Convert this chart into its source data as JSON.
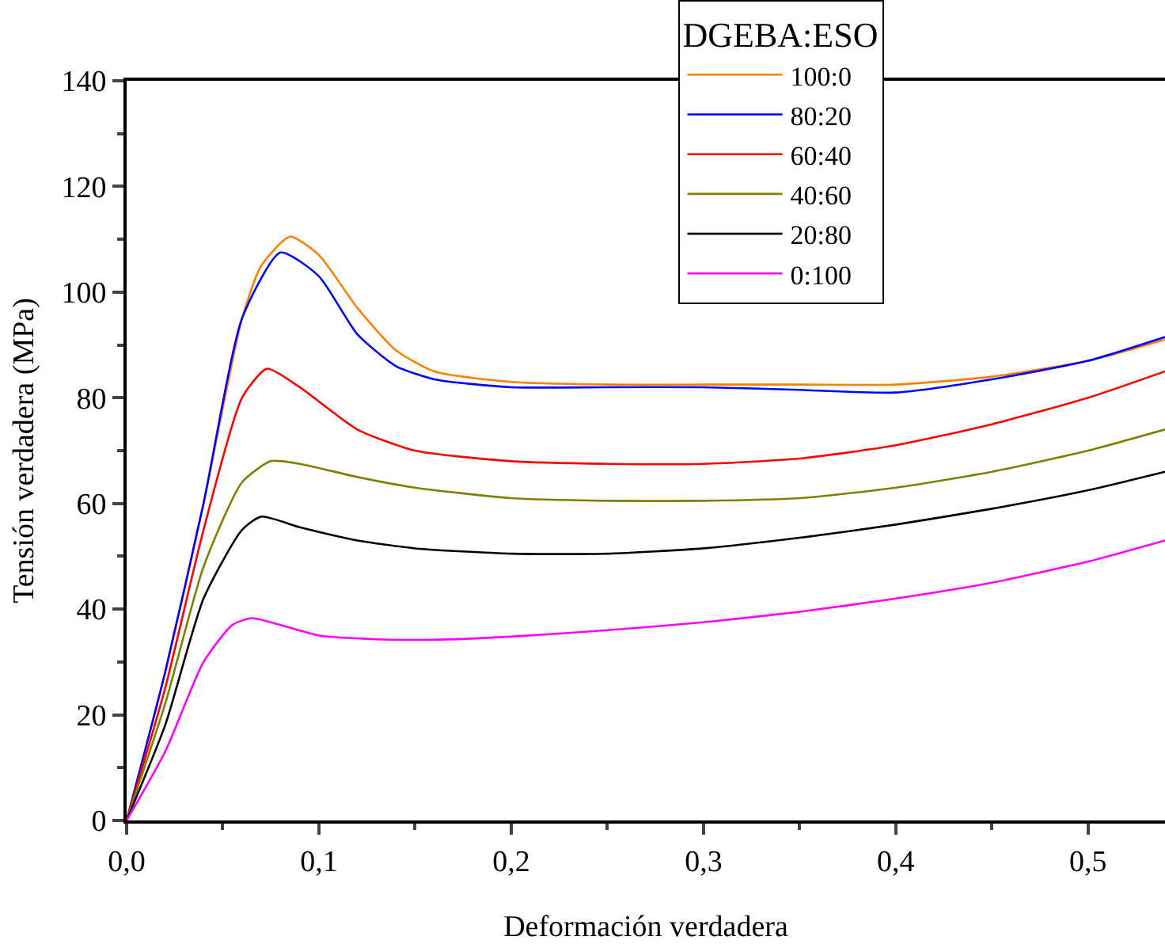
{
  "chart_data": {
    "type": "line",
    "xlabel": "Deformación verdadera",
    "ylabel": "Tensión verdadera (MPa)",
    "legend_title": "DGEBA:ESO",
    "legend": "top",
    "marker": "none",
    "line_style": "solid",
    "xlim": [
      0,
      0.54
    ],
    "xticks": [
      {
        "value": 0,
        "label": "0,0"
      },
      {
        "value": 0.1,
        "label": "0,1"
      },
      {
        "value": 0.2,
        "label": "0,2"
      },
      {
        "value": 0.3,
        "label": "0,3"
      },
      {
        "value": 0.4,
        "label": "0,4"
      },
      {
        "value": 0.5,
        "label": "0,5"
      }
    ],
    "ylim": [
      0,
      140
    ],
    "yticks": [
      0,
      20,
      40,
      60,
      80,
      100,
      120,
      140
    ],
    "series": [
      {
        "name": "100:0",
        "color": "#ff8000",
        "x": [
          0,
          0.02,
          0.04,
          0.06,
          0.07,
          0.085,
          0.1,
          0.12,
          0.14,
          0.16,
          0.2,
          0.25,
          0.3,
          0.35,
          0.4,
          0.45,
          0.5,
          0.54
        ],
        "values": [
          0,
          28,
          60,
          95,
          105,
          110.5,
          107,
          97,
          89,
          85,
          83,
          82.5,
          82.5,
          82.5,
          82.5,
          84,
          87,
          91
        ]
      },
      {
        "name": "80:20",
        "color": "#0000ff",
        "x": [
          0,
          0.02,
          0.04,
          0.06,
          0.08,
          0.1,
          0.12,
          0.14,
          0.16,
          0.2,
          0.25,
          0.3,
          0.35,
          0.4,
          0.45,
          0.5,
          0.54
        ],
        "values": [
          0,
          28,
          60,
          95,
          107.5,
          103,
          92,
          86,
          83.5,
          82,
          82,
          82,
          81.5,
          81,
          83.5,
          87,
          91.5
        ]
      },
      {
        "name": "60:40",
        "color": "#ff0000",
        "x": [
          0,
          0.02,
          0.04,
          0.06,
          0.073,
          0.09,
          0.12,
          0.15,
          0.2,
          0.25,
          0.3,
          0.35,
          0.4,
          0.45,
          0.5,
          0.54
        ],
        "values": [
          0,
          25,
          55,
          80,
          85.5,
          82,
          74,
          70,
          68,
          67.5,
          67.5,
          68.5,
          71,
          75,
          80,
          85
        ]
      },
      {
        "name": "40:60",
        "color": "#808000",
        "x": [
          0,
          0.02,
          0.04,
          0.06,
          0.075,
          0.09,
          0.12,
          0.15,
          0.2,
          0.25,
          0.3,
          0.35,
          0.4,
          0.45,
          0.5,
          0.54
        ],
        "values": [
          0,
          22,
          48,
          64,
          68,
          67.5,
          65,
          63,
          61,
          60.5,
          60.5,
          61,
          63,
          66,
          70,
          74
        ]
      },
      {
        "name": "20:80",
        "color": "#000000",
        "x": [
          0,
          0.02,
          0.04,
          0.06,
          0.07,
          0.09,
          0.12,
          0.15,
          0.2,
          0.25,
          0.3,
          0.35,
          0.4,
          0.45,
          0.5,
          0.54
        ],
        "values": [
          0,
          18,
          42,
          55,
          57.5,
          55.5,
          53,
          51.5,
          50.5,
          50.5,
          51.5,
          53.5,
          56,
          59,
          62.5,
          66
        ]
      },
      {
        "name": "0:100",
        "color": "#ff00ff",
        "x": [
          0,
          0.02,
          0.04,
          0.055,
          0.065,
          0.08,
          0.1,
          0.13,
          0.16,
          0.2,
          0.25,
          0.3,
          0.35,
          0.4,
          0.45,
          0.5,
          0.54
        ],
        "values": [
          0,
          13,
          30,
          37,
          38.3,
          37,
          35,
          34.3,
          34.2,
          34.8,
          36,
          37.5,
          39.5,
          42,
          45,
          49,
          53
        ]
      }
    ]
  }
}
